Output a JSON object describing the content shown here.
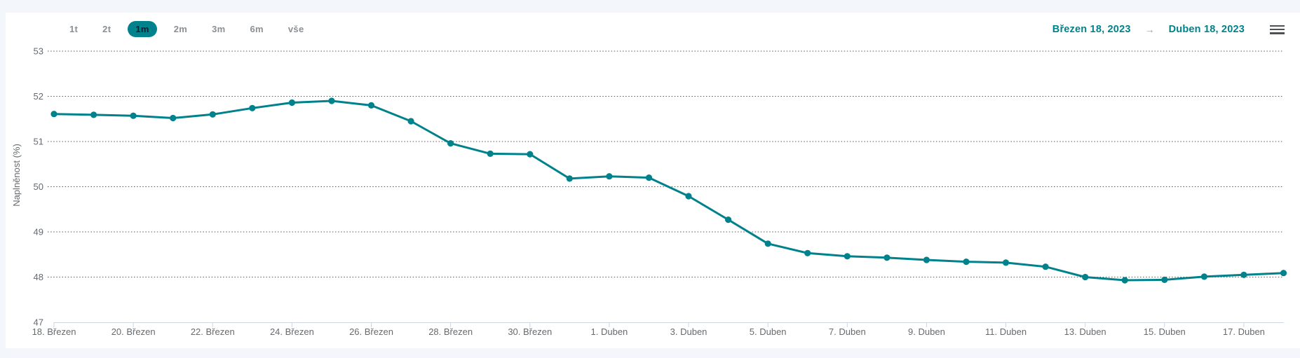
{
  "toolbar": {
    "range_buttons": [
      {
        "label": "1t",
        "selected": false
      },
      {
        "label": "2t",
        "selected": false
      },
      {
        "label": "1m",
        "selected": true
      },
      {
        "label": "2m",
        "selected": false
      },
      {
        "label": "3m",
        "selected": false
      },
      {
        "label": "6m",
        "selected": false
      },
      {
        "label": "vše",
        "selected": false
      }
    ],
    "date_from": "Březen 18, 2023",
    "date_arrow": "→",
    "date_to": "Duben 18, 2023",
    "menu_icon": "hamburger-menu-icon"
  },
  "colors": {
    "accent_teal": "#00828c",
    "page_background": "#f3f6fa",
    "panel_background": "#ffffff",
    "axis_label_gray": "#666a6e",
    "button_gray": "#8b9095",
    "axis_line_blue_gray": "#cbd6e3",
    "gridline_dot_gray": "#55585a",
    "menu_icon_gray": "#4d5154"
  },
  "chart_data": {
    "type": "line",
    "title": "",
    "xlabel": "",
    "ylabel": "Naplněnost (%)",
    "series_name": "Naplněnost (%)",
    "line_color": "#00828c",
    "marker": "circle",
    "grid": "dotted horizontal",
    "legend_position": "none",
    "ylim": [
      47,
      53.2
    ],
    "y_ticks": [
      47,
      48,
      49,
      50,
      51,
      52,
      53
    ],
    "x_tick_interval": 2,
    "x": [
      "18. Březen",
      "19. Březen",
      "20. Březen",
      "21. Březen",
      "22. Březen",
      "23. Březen",
      "24. Březen",
      "25. Březen",
      "26. Březen",
      "27. Březen",
      "28. Březen",
      "29. Březen",
      "30. Březen",
      "31. Březen",
      "1. Duben",
      "2. Duben",
      "3. Duben",
      "4. Duben",
      "5. Duben",
      "6. Duben",
      "7. Duben",
      "8. Duben",
      "9. Duben",
      "10. Duben",
      "11. Duben",
      "12. Duben",
      "13. Duben",
      "14. Duben",
      "15. Duben",
      "16. Duben",
      "17. Duben",
      "18. Duben"
    ],
    "values": [
      51.61,
      51.59,
      51.57,
      51.52,
      51.6,
      51.74,
      51.86,
      51.9,
      51.8,
      51.45,
      50.96,
      50.73,
      50.72,
      50.18,
      50.23,
      50.2,
      49.79,
      49.27,
      48.74,
      48.53,
      48.46,
      48.43,
      48.38,
      48.34,
      48.32,
      48.23,
      48.0,
      47.93,
      47.94,
      48.01,
      48.05,
      48.09
    ]
  }
}
